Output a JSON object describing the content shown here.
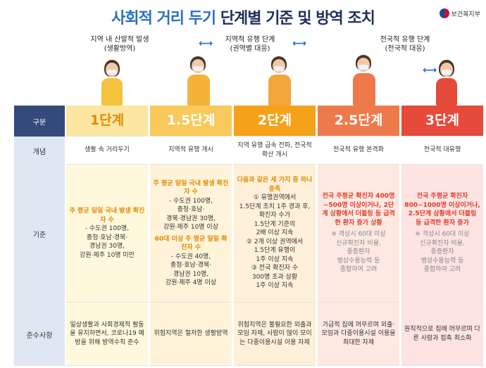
{
  "title": {
    "part1": "사회적 거리 두기",
    "part2": "단계별 기준 및 방역 조치"
  },
  "ministry": "보건복지부",
  "captions": {
    "c1": [
      "지역 내 산발적 발생",
      "(생활방역)"
    ],
    "c2": [
      "지역적 유행 단계",
      "(권역별 대응)"
    ],
    "c3": [
      "전국적 유행 단계",
      "(전국적 대응)"
    ]
  },
  "row_labels": {
    "header": "구분",
    "concept": "개념",
    "criteria": "기준",
    "rules": "준수사항"
  },
  "stages": [
    "1단계",
    "1.5단계",
    "2단계",
    "2.5단계",
    "3단계"
  ],
  "concepts": [
    "생활 속 거리두기",
    "지역적 유행 개시",
    "지역 유행 급속 전파, 전국적 확산 개시",
    "전국적 유행 본격화",
    "전국적 대유행"
  ],
  "criteria": {
    "s1": {
      "head": "주 평균 일일 국내 발생 확진자 수",
      "lines": [
        "- 수도권 100명,",
        "충청·호남·경북·",
        "경남권 30명,",
        "강원·제주 10명 미만"
      ]
    },
    "s2": {
      "head1": "주 평균 일일 국내 발생 확진자 수",
      "lines1": [
        "- 수도권 100명,",
        "충청·호남·",
        "경북·경남권 30명,",
        "강원·제주 10명 이상"
      ],
      "head2": "60대 이상 주 평균 일일 확진자 수",
      "lines2": [
        "- 수도권 40명,",
        "충청·호남·경북·",
        "경남권 10명,",
        "강원·제주 4명 이상"
      ]
    },
    "s3": {
      "head": "다음과 같은 세 가지 중 하나 충족",
      "lines": [
        "① 유행권역에서",
        "1.5단계 조치 1주 경과 후,",
        "확진자 수가",
        "1.5단계 기준의",
        "2배 이상 지속",
        "② 2개 이상 권역에서",
        "1.5단계 유행이",
        "1주 이상 지속",
        "③ 전국 확진자 수",
        "300명 초과 상황",
        "1주 이상 지속"
      ]
    },
    "s4": {
      "head": "전국 주평균 확진자 400명~500명 이상이거나, 2단계 상황에서 더블링 등 급격한 환자 증가 상황",
      "note": [
        "※ 격상시 60대 이상",
        "신규확진자 비율,",
        "중증환자",
        "병상수용능력 등",
        "종합하여 고려"
      ]
    },
    "s5": {
      "head": "전국 주평균 확진자 800~1000명 이상이거나, 2.5단계 상황에서 더블링 등 급격한 환자 증가",
      "note": [
        "※ 격상시 60대 이상",
        "신규확진자 비율,",
        "중증환자",
        "병상수용능력 등",
        "종합하여 고려"
      ]
    }
  },
  "rules": [
    "일상생활과 사회경제적 활동을 유지하면서, 코로나19 예방을 위해 방역수칙 준수",
    "위험지역은 철저한 생활방역",
    "위험지역은 불필요한 외출과 모임 자제, 사람이 많이 모이는 다중이용시설 이용 자제",
    "가급적 집에 머무르며 외출·모임과 다중이용시설 이용을 최대한 자제",
    "원칙적으로 집에 머무르며 다른 사람과 접촉 최소화"
  ],
  "colors": {
    "blue": "#2a6fc4",
    "navy": "#344a7a",
    "s1": "#fbe7a1",
    "s2": "#f9c95b",
    "s3": "#f5a21a",
    "s4": "#ee7a4c",
    "s5": "#e54a3a"
  }
}
